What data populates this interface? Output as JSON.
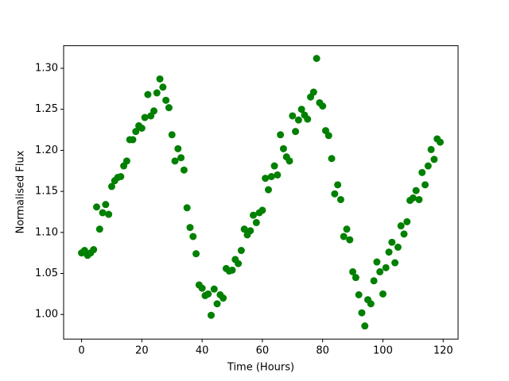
{
  "chart_data": {
    "type": "scatter",
    "xlabel": "Time (Hours)",
    "ylabel": "Normalised Flux",
    "color": "#008000",
    "x": [
      0,
      1,
      2,
      3,
      4,
      5,
      6,
      7,
      8,
      9,
      10,
      11,
      12,
      13,
      14,
      15,
      16,
      17,
      18,
      19,
      20,
      21,
      22,
      23,
      24,
      25,
      26,
      27,
      28,
      29,
      30,
      31,
      32,
      33,
      34,
      35,
      36,
      37,
      38,
      39,
      40,
      41,
      42,
      43,
      44,
      45,
      46,
      47,
      48,
      49,
      50,
      51,
      52,
      53,
      54,
      55,
      56,
      57,
      58,
      59,
      60,
      61,
      62,
      63,
      64,
      65,
      66,
      67,
      68,
      69,
      70,
      71,
      72,
      73,
      74,
      75,
      76,
      77,
      78,
      79,
      80,
      81,
      82,
      83,
      84,
      85,
      86,
      87,
      88,
      89,
      90,
      91,
      92,
      93,
      94,
      95,
      96,
      97,
      98,
      99,
      100,
      101,
      102,
      103,
      104,
      105,
      106,
      107,
      108,
      109,
      110,
      111,
      112,
      113,
      114,
      115,
      116,
      117,
      118,
      119
    ],
    "values": [
      1.075,
      1.078,
      1.072,
      1.075,
      1.079,
      1.131,
      1.104,
      1.124,
      1.134,
      1.122,
      1.156,
      1.163,
      1.167,
      1.168,
      1.181,
      1.187,
      1.213,
      1.213,
      1.223,
      1.23,
      1.227,
      1.24,
      1.268,
      1.242,
      1.248,
      1.27,
      1.287,
      1.277,
      1.261,
      1.252,
      1.219,
      1.187,
      1.202,
      1.191,
      1.176,
      1.13,
      1.106,
      1.095,
      1.074,
      1.036,
      1.032,
      1.023,
      1.025,
      0.999,
      1.031,
      1.013,
      1.024,
      1.02,
      1.056,
      1.053,
      1.054,
      1.067,
      1.062,
      1.078,
      1.104,
      1.097,
      1.102,
      1.121,
      1.112,
      1.124,
      1.127,
      1.166,
      1.152,
      1.168,
      1.181,
      1.17,
      1.219,
      1.202,
      1.192,
      1.187,
      1.242,
      1.223,
      1.237,
      1.25,
      1.243,
      1.238,
      1.265,
      1.271,
      1.312,
      1.258,
      1.254,
      1.224,
      1.218,
      1.19,
      1.147,
      1.158,
      1.14,
      1.095,
      1.104,
      1.091,
      1.052,
      1.045,
      1.024,
      1.002,
      0.986,
      1.018,
      1.013,
      1.041,
      1.064,
      1.052,
      1.025,
      1.057,
      1.076,
      1.088,
      1.063,
      1.082,
      1.108,
      1.098,
      1.113,
      1.139,
      1.142,
      1.151,
      1.14,
      1.173,
      1.158,
      1.181,
      1.201,
      1.189,
      1.214,
      1.21
    ],
    "xlim": [
      -5.95,
      124.95
    ],
    "xticks": [
      0,
      20,
      40,
      60,
      80,
      100,
      120
    ],
    "ylim": [
      0.97,
      1.3275
    ],
    "yticks": [
      {
        "value": 1.0,
        "label": "1.00"
      },
      {
        "value": 1.05,
        "label": "1.05"
      },
      {
        "value": 1.1,
        "label": "1.10"
      },
      {
        "value": 1.15,
        "label": "1.15"
      },
      {
        "value": 1.2,
        "label": "1.20"
      },
      {
        "value": 1.25,
        "label": "1.25"
      },
      {
        "value": 1.3,
        "label": "1.30"
      }
    ]
  }
}
